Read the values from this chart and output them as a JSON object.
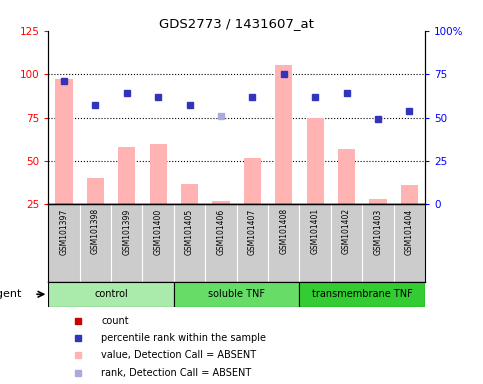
{
  "title": "GDS2773 / 1431607_at",
  "samples": [
    "GSM101397",
    "GSM101398",
    "GSM101399",
    "GSM101400",
    "GSM101405",
    "GSM101406",
    "GSM101407",
    "GSM101408",
    "GSM101401",
    "GSM101402",
    "GSM101403",
    "GSM101404"
  ],
  "bar_values": [
    97,
    40,
    58,
    60,
    37,
    27,
    52,
    105,
    75,
    57,
    28,
    36
  ],
  "all_absent": true,
  "rank_values": [
    71,
    57,
    64,
    62,
    57,
    51,
    62,
    75,
    62,
    64,
    49,
    54
  ],
  "rank_absent": [
    false,
    false,
    false,
    false,
    false,
    true,
    false,
    false,
    false,
    false,
    false,
    false
  ],
  "groups": [
    {
      "label": "control",
      "start": 0,
      "end": 4,
      "color": "#aaeaaa"
    },
    {
      "label": "soluble TNF",
      "start": 4,
      "end": 8,
      "color": "#66dd66"
    },
    {
      "label": "transmembrane TNF",
      "start": 8,
      "end": 12,
      "color": "#33cc33"
    }
  ],
  "ylim_left": [
    25,
    125
  ],
  "ylim_right": [
    0,
    100
  ],
  "yticks_left": [
    25,
    50,
    75,
    100,
    125
  ],
  "ytick_labels_left": [
    "25",
    "50",
    "75",
    "100",
    "125"
  ],
  "yticks_right": [
    0,
    25,
    50,
    75,
    100
  ],
  "ytick_labels_right": [
    "0",
    "25",
    "50",
    "75",
    "100%"
  ],
  "hlines": [
    50,
    75,
    100
  ],
  "bar_color_absent": "#ffb3b3",
  "bar_color_present": "#ff6666",
  "rank_color_present": "#3333bb",
  "rank_color_absent": "#aaaadd",
  "bar_width": 0.55,
  "label_area_color": "#cccccc",
  "legend_items": [
    {
      "color": "#cc0000",
      "label": "count"
    },
    {
      "color": "#3333bb",
      "label": "percentile rank within the sample"
    },
    {
      "color": "#ffb3b3",
      "label": "value, Detection Call = ABSENT"
    },
    {
      "color": "#aaaadd",
      "label": "rank, Detection Call = ABSENT"
    }
  ],
  "agent_label": "agent"
}
